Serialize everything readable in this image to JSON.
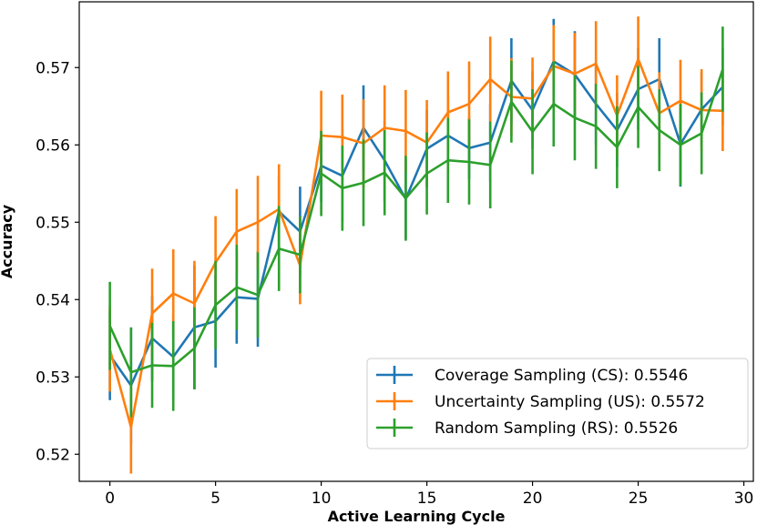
{
  "chart_data": {
    "type": "line",
    "xlabel": "Active Learning Cycle",
    "ylabel": "Accuracy",
    "xlim": [
      -1.45,
      30.45
    ],
    "ylim": [
      0.5165,
      0.5785
    ],
    "xticks": [
      0,
      5,
      10,
      15,
      20,
      25,
      30
    ],
    "yticks": [
      0.52,
      0.53,
      0.54,
      0.55,
      0.56,
      0.57
    ],
    "ytick_labels": [
      "0.52",
      "0.53",
      "0.54",
      "0.55",
      "0.56",
      "0.57"
    ],
    "grid": false,
    "legend_position": "lower right",
    "x": [
      0,
      1,
      2,
      3,
      4,
      5,
      6,
      7,
      8,
      9,
      10,
      11,
      12,
      13,
      14,
      15,
      16,
      17,
      18,
      19,
      20,
      21,
      22,
      23,
      24,
      25,
      26,
      27,
      28,
      29
    ],
    "series": [
      {
        "name": "Coverage Sampling (CS): 0.5546",
        "color": "#1f77b4",
        "values": [
          0.5328,
          0.5289,
          0.535,
          0.5326,
          0.5364,
          0.5372,
          0.5403,
          0.5401,
          0.5514,
          0.5488,
          0.5573,
          0.556,
          0.5622,
          0.558,
          0.553,
          0.5595,
          0.5612,
          0.5596,
          0.5603,
          0.5683,
          0.5645,
          0.5708,
          0.5691,
          0.5653,
          0.5619,
          0.5672,
          0.5685,
          0.5601,
          0.5646,
          0.5675
        ],
        "errors": [
          0.0058,
          0.0075,
          0.0055,
          0.0055,
          0.008,
          0.006,
          0.006,
          0.0062,
          0.0047,
          0.0058,
          0.0047,
          0.006,
          0.0055,
          0.0053,
          0.0052,
          0.005,
          0.005,
          0.004,
          0.005,
          0.0055,
          0.005,
          0.0055,
          0.0056,
          0.0053,
          0.0048,
          0.0053,
          0.0053,
          0.0055,
          0.0048,
          0.005
        ]
      },
      {
        "name": "Uncertainty Sampling (US): 0.5572",
        "color": "#ff7f0e",
        "values": [
          0.5336,
          0.5235,
          0.5382,
          0.5408,
          0.5395,
          0.5448,
          0.5488,
          0.55,
          0.5517,
          0.5444,
          0.5612,
          0.561,
          0.5602,
          0.5622,
          0.5618,
          0.5603,
          0.5642,
          0.5653,
          0.5685,
          0.5662,
          0.566,
          0.5702,
          0.5692,
          0.5705,
          0.5638,
          0.5711,
          0.5641,
          0.5657,
          0.5645,
          0.5644
        ],
        "errors": [
          0.0055,
          0.006,
          0.0058,
          0.0057,
          0.0055,
          0.006,
          0.0055,
          0.006,
          0.0058,
          0.005,
          0.0058,
          0.0055,
          0.0057,
          0.0055,
          0.0053,
          0.0055,
          0.0053,
          0.0055,
          0.0055,
          0.005,
          0.0053,
          0.0053,
          0.0053,
          0.0055,
          0.0052,
          0.0055,
          0.0053,
          0.0053,
          0.0053,
          0.0052
        ]
      },
      {
        "name": "Random Sampling (RS): 0.5526",
        "color": "#2ca02c",
        "values": [
          0.5366,
          0.5306,
          0.5315,
          0.5314,
          0.5337,
          0.5393,
          0.5416,
          0.5406,
          0.5466,
          0.5458,
          0.5563,
          0.5544,
          0.5551,
          0.5564,
          0.5531,
          0.5563,
          0.558,
          0.5578,
          0.5574,
          0.5656,
          0.5617,
          0.5653,
          0.5635,
          0.5624,
          0.5597,
          0.5649,
          0.5619,
          0.56,
          0.5615,
          0.5698
        ],
        "errors": [
          0.0057,
          0.0058,
          0.0055,
          0.0058,
          0.0053,
          0.0057,
          0.0055,
          0.0055,
          0.0055,
          0.005,
          0.0055,
          0.0055,
          0.0056,
          0.0055,
          0.0055,
          0.0053,
          0.0055,
          0.0055,
          0.0056,
          0.0053,
          0.0055,
          0.0055,
          0.0055,
          0.0055,
          0.0053,
          0.0053,
          0.0053,
          0.0053,
          0.0053,
          0.0055
        ]
      }
    ]
  }
}
